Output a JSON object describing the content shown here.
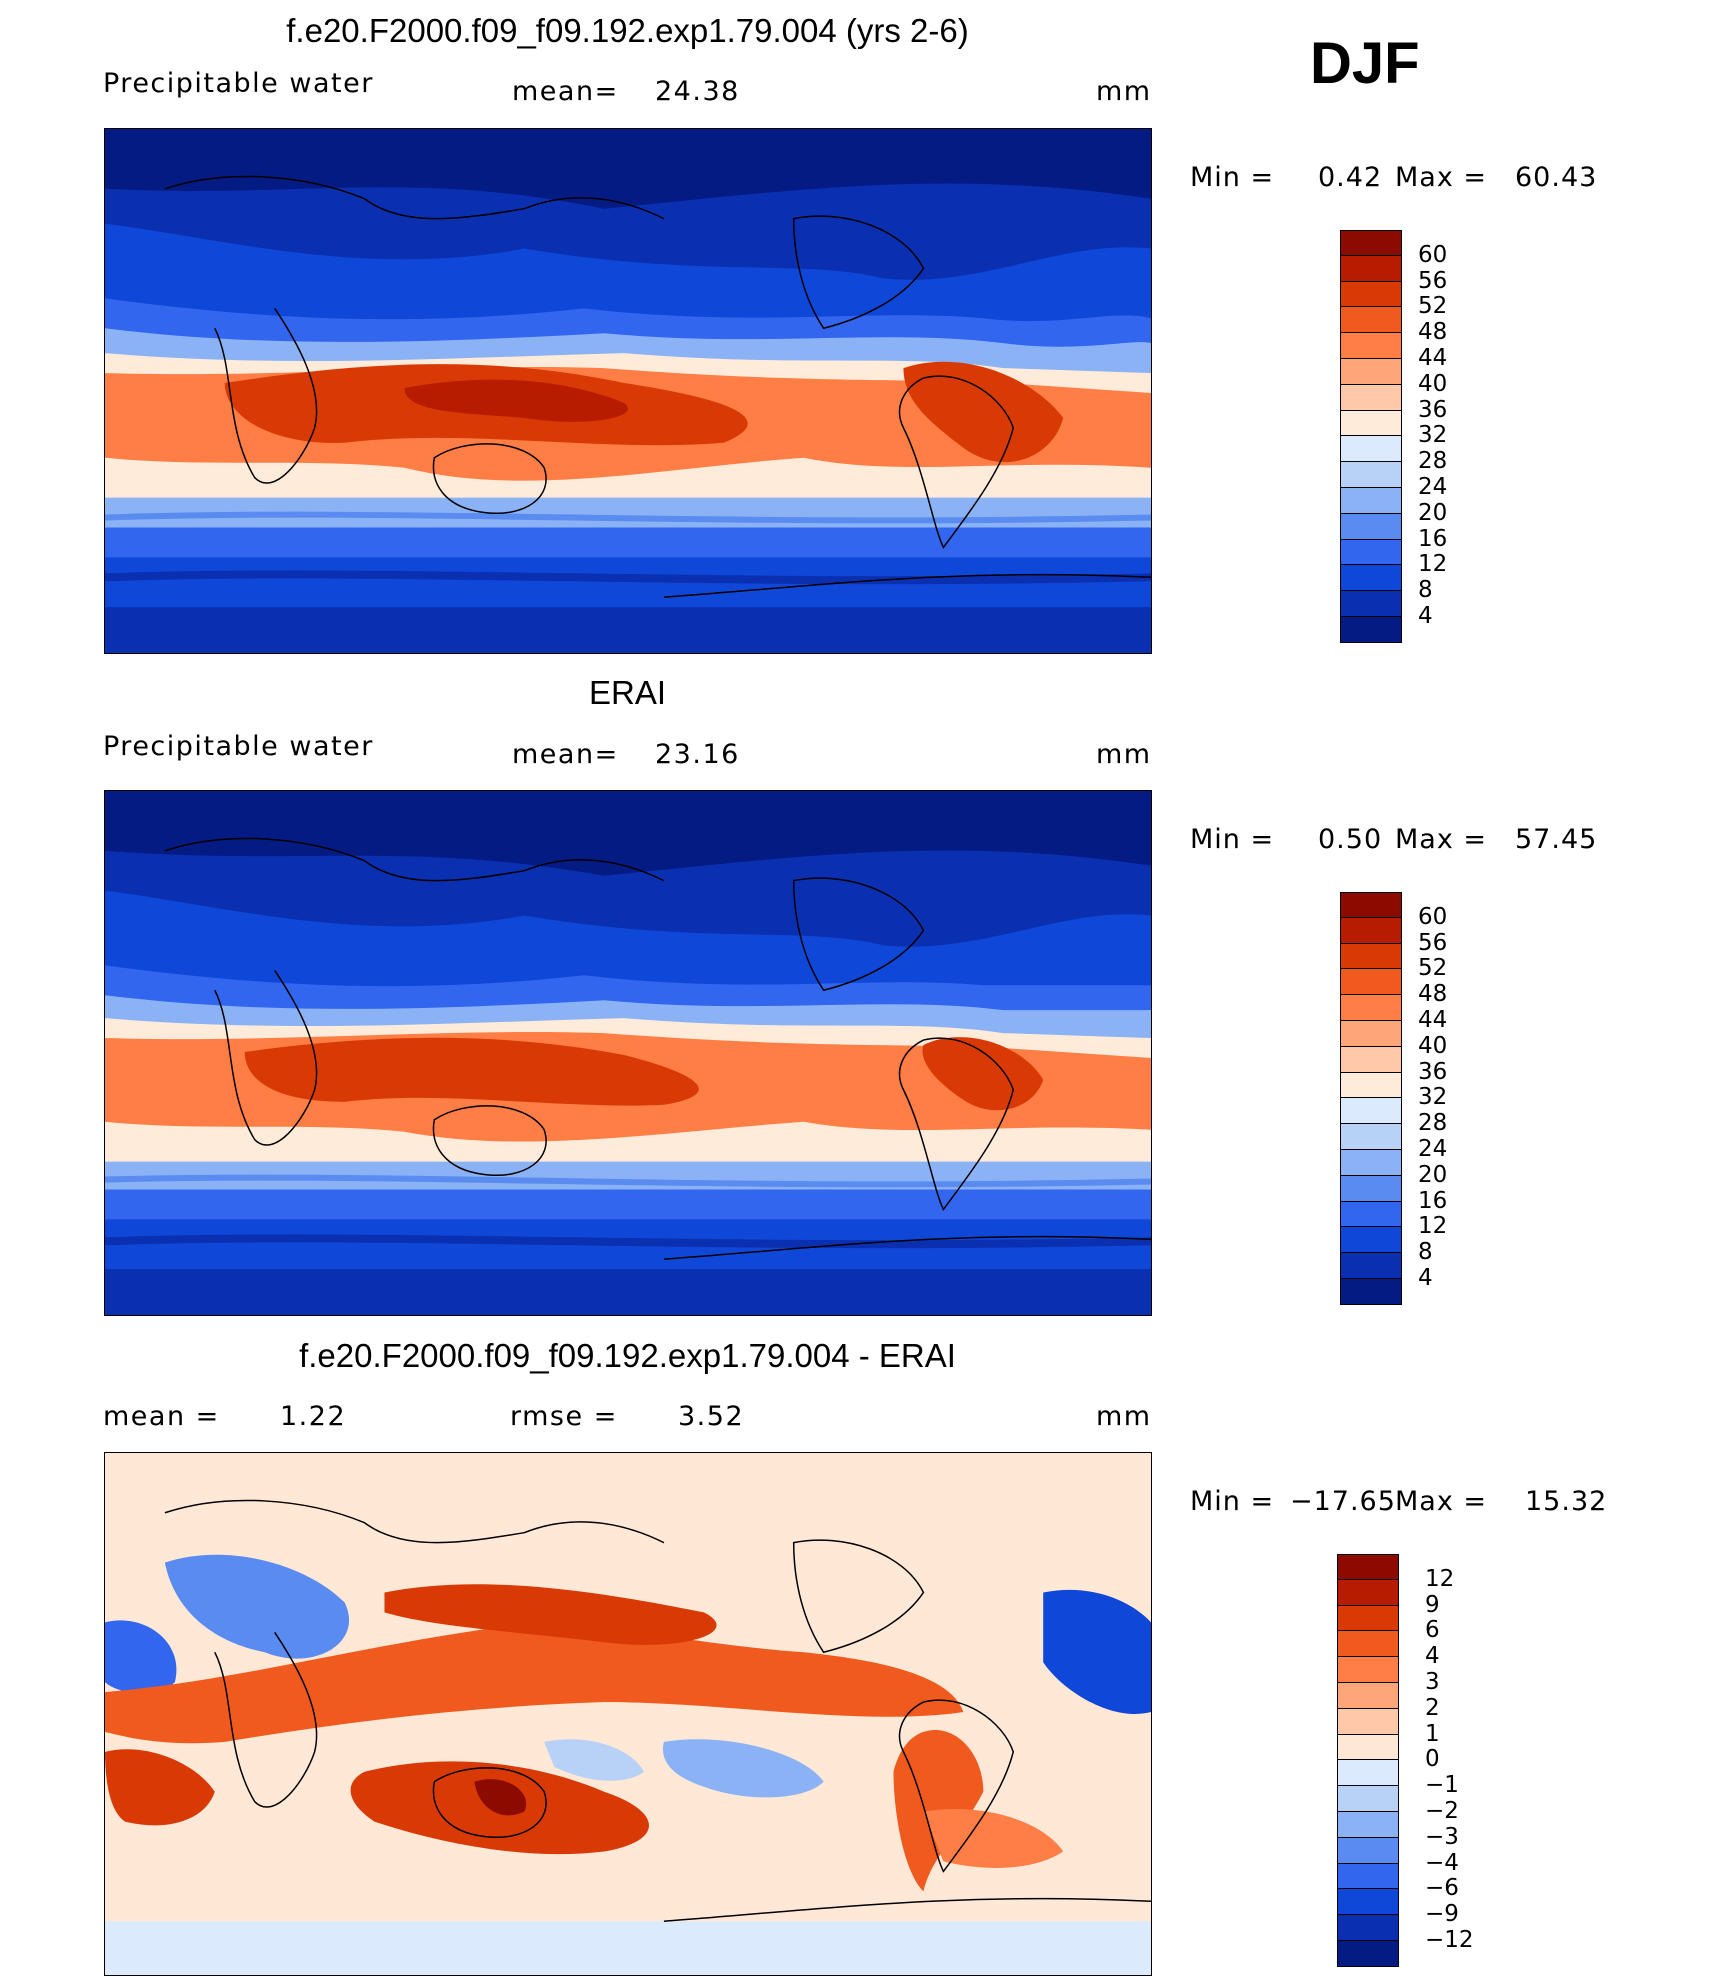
{
  "season": "DJF",
  "panels": [
    {
      "title": "f.e20.F2000.f09_f09.192.exp1.79.004 (yrs 2-6)",
      "left_label": "Precipitable  water",
      "mid_label": "mean=",
      "mid_value": "24.38",
      "units": "mm",
      "min_label": "Min  =",
      "min_value": "0.42",
      "max_label": "Max  =",
      "max_value": "60.43",
      "colorbar": {
        "labels": [
          "60",
          "56",
          "52",
          "48",
          "44",
          "40",
          "36",
          "32",
          "28",
          "24",
          "20",
          "16",
          "12",
          "8",
          "4"
        ],
        "colors": [
          "#8c0a00",
          "#b81c00",
          "#d93a05",
          "#f05a1e",
          "#ff7e46",
          "#ffa57a",
          "#ffc9a9",
          "#ffebd9",
          "#dbeafc",
          "#b8d2f7",
          "#8bb2f5",
          "#5a8bf0",
          "#3366ee",
          "#0f47d9",
          "#0a2fb0",
          "#041b84"
        ]
      }
    },
    {
      "title": "ERAI",
      "left_label": "Precipitable  water",
      "mid_label": "mean=",
      "mid_value": "23.16",
      "units": "mm",
      "min_label": "Min  =",
      "min_value": "0.50",
      "max_label": "Max  =",
      "max_value": "57.45",
      "colorbar": {
        "labels": [
          "60",
          "56",
          "52",
          "48",
          "44",
          "40",
          "36",
          "32",
          "28",
          "24",
          "20",
          "16",
          "12",
          "8",
          "4"
        ],
        "colors": [
          "#8c0a00",
          "#b81c00",
          "#d93a05",
          "#f05a1e",
          "#ff7e46",
          "#ffa57a",
          "#ffc9a9",
          "#ffebd9",
          "#dbeafc",
          "#b8d2f7",
          "#8bb2f5",
          "#5a8bf0",
          "#3366ee",
          "#0f47d9",
          "#0a2fb0",
          "#041b84"
        ]
      }
    },
    {
      "title": "f.e20.F2000.f09_f09.192.exp1.79.004 - ERAI",
      "left_label": "mean  =",
      "left_value": "1.22",
      "mid_label": "rmse  =",
      "mid_value": "3.52",
      "units": "mm",
      "min_label": "Min  =",
      "min_value": "−17.65",
      "max_label": "Max  =",
      "max_value": "15.32",
      "colorbar": {
        "labels": [
          "12",
          "9",
          "6",
          "4",
          "3",
          "2",
          "1",
          "0",
          "−1",
          "−2",
          "−3",
          "−4",
          "−6",
          "−9",
          "−12"
        ],
        "colors": [
          "#8c0a00",
          "#b81c00",
          "#d93a05",
          "#f05a1e",
          "#ff7e46",
          "#ffa57a",
          "#ffc9a9",
          "#ffe8d6",
          "#dbeafc",
          "#b8d2f7",
          "#8bb2f5",
          "#5a8bf0",
          "#3366ee",
          "#0f47d9",
          "#0a2fb0",
          "#041b84"
        ]
      }
    }
  ],
  "chart_data": [
    {
      "type": "heatmap",
      "title": "f.e20.F2000.f09_f09.192.exp1.79.004 (yrs 2-6)",
      "variable": "Precipitable  water",
      "mean": 24.38,
      "units": "mm",
      "min": 0.42,
      "max": 60.43,
      "contour_levels": [
        4,
        8,
        12,
        16,
        20,
        24,
        28,
        32,
        36,
        40,
        44,
        48,
        52,
        56,
        60
      ]
    },
    {
      "type": "heatmap",
      "title": "ERAI",
      "variable": "Precipitable  water",
      "mean": 23.16,
      "units": "mm",
      "min": 0.5,
      "max": 57.45,
      "contour_levels": [
        4,
        8,
        12,
        16,
        20,
        24,
        28,
        32,
        36,
        40,
        44,
        48,
        52,
        56,
        60
      ]
    },
    {
      "type": "heatmap",
      "title": "f.e20.F2000.f09_f09.192.exp1.79.004 - ERAI",
      "mean": 1.22,
      "rmse": 3.52,
      "units": "mm",
      "min": -17.65,
      "max": 15.32,
      "contour_levels": [
        -12,
        -9,
        -6,
        -4,
        -3,
        -2,
        -1,
        0,
        1,
        2,
        3,
        4,
        6,
        9,
        12
      ]
    }
  ]
}
